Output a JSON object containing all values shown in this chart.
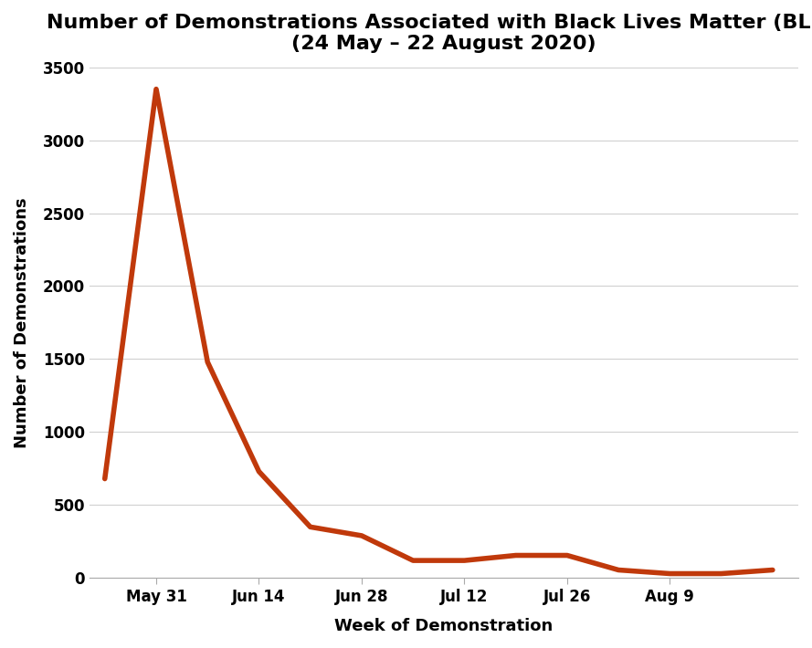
{
  "title_line1": "Number of Demonstrations Associated with Black Lives Matter (BLM)",
  "title_line2": "(24 May – 22 August 2020)",
  "xlabel": "Week of Demonstration",
  "ylabel": "Number of Demonstrations",
  "line_color": "#C0390B",
  "line_width": 4.0,
  "background_color": "#ffffff",
  "ylim": [
    0,
    3500
  ],
  "yticks": [
    0,
    500,
    1000,
    1500,
    2000,
    2500,
    3000,
    3500
  ],
  "x_values": [
    0,
    1,
    2,
    3,
    4,
    5,
    6,
    7,
    8,
    9,
    10,
    11,
    12,
    13
  ],
  "y_values": [
    680,
    3350,
    1480,
    730,
    350,
    290,
    120,
    120,
    155,
    155,
    55,
    30,
    30,
    55
  ],
  "xtick_positions": [
    1,
    3,
    5,
    7,
    9,
    11
  ],
  "xtick_labels": [
    "May 31",
    "Jun 14",
    "Jun 28",
    "Jul 12",
    "Jul 26",
    "Aug 9"
  ],
  "xlim": [
    -0.3,
    13.5
  ],
  "grid_color": "#d0d0d0",
  "title_fontsize": 16,
  "axis_label_fontsize": 13,
  "tick_fontsize": 12
}
